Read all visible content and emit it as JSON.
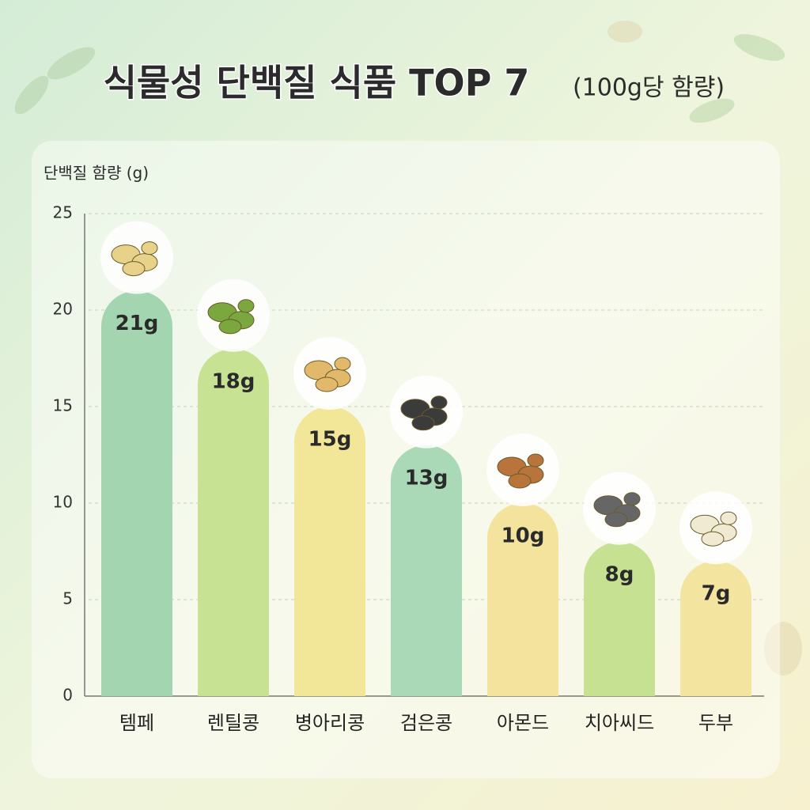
{
  "chart_data": {
    "type": "bar",
    "title": "식물성 단백질 식품 TOP 7",
    "subtitle": "(100g당 함량)",
    "y_label": "단백질 함량 (g)",
    "categories": [
      "템페",
      "렌틸콩",
      "병아리콩",
      "검은콩",
      "아몬드",
      "치아씨드",
      "두부"
    ],
    "values": [
      21,
      18,
      15,
      13,
      10,
      8,
      7
    ],
    "value_labels": [
      "21g",
      "18g",
      "15g",
      "13g",
      "10g",
      "8g",
      "7g"
    ],
    "colors": [
      "#a3d6b0",
      "#c8e293",
      "#f2e698",
      "#a9d9b6",
      "#f3e39c",
      "#c5e191",
      "#f3e4a0"
    ],
    "ylim": [
      0,
      25
    ],
    "yticks": [
      0,
      5,
      10,
      15,
      20,
      25
    ],
    "grid": true
  }
}
